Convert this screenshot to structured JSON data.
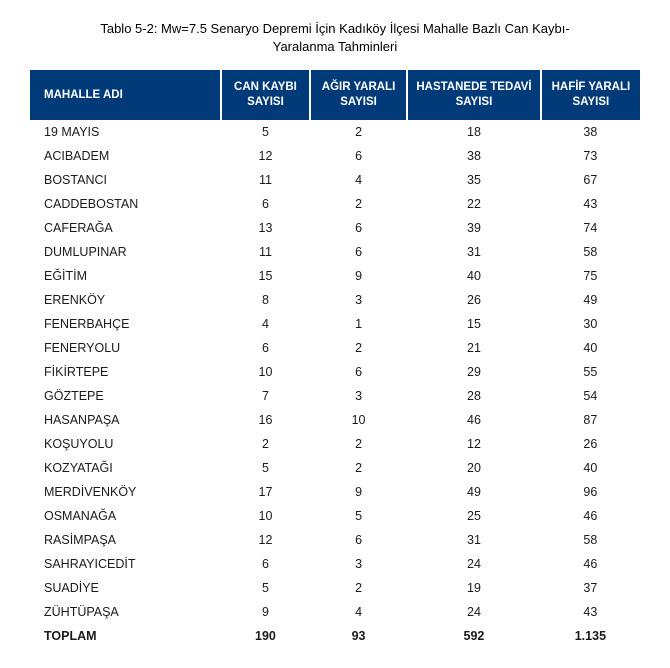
{
  "title": "Tablo 5-2: Mw=7.5 Senaryo Depremi İçin Kadıköy İlçesi Mahalle Bazlı Can Kaybı-Yaralanma Tahminleri",
  "table": {
    "columns": [
      "MAHALLE ADI",
      "CAN KAYBI SAYISI",
      "AĞIR YARALI SAYISI",
      "HASTANEDE TEDAVİ SAYISI",
      "HAFİF YARALI SAYISI"
    ],
    "rows": [
      [
        "19 MAYIS",
        "5",
        "2",
        "18",
        "38"
      ],
      [
        "ACIBADEM",
        "12",
        "6",
        "38",
        "73"
      ],
      [
        "BOSTANCI",
        "11",
        "4",
        "35",
        "67"
      ],
      [
        "CADDEBOSTAN",
        "6",
        "2",
        "22",
        "43"
      ],
      [
        "CAFERAĞA",
        "13",
        "6",
        "39",
        "74"
      ],
      [
        "DUMLUPINAR",
        "11",
        "6",
        "31",
        "58"
      ],
      [
        "EĞİTİM",
        "15",
        "9",
        "40",
        "75"
      ],
      [
        "ERENKÖY",
        "8",
        "3",
        "26",
        "49"
      ],
      [
        "FENERBAHÇE",
        "4",
        "1",
        "15",
        "30"
      ],
      [
        "FENERYOLU",
        "6",
        "2",
        "21",
        "40"
      ],
      [
        "FİKİRTEPE",
        "10",
        "6",
        "29",
        "55"
      ],
      [
        "GÖZTEPE",
        "7",
        "3",
        "28",
        "54"
      ],
      [
        "HASANPAŞA",
        "16",
        "10",
        "46",
        "87"
      ],
      [
        "KOŞUYOLU",
        "2",
        "2",
        "12",
        "26"
      ],
      [
        "KOZYATAĞI",
        "5",
        "2",
        "20",
        "40"
      ],
      [
        "MERDİVENKÖY",
        "17",
        "9",
        "49",
        "96"
      ],
      [
        "OSMANAĞA",
        "10",
        "5",
        "25",
        "46"
      ],
      [
        "RASİMPAŞA",
        "12",
        "6",
        "31",
        "58"
      ],
      [
        "SAHRAYICEDİT",
        "6",
        "3",
        "24",
        "46"
      ],
      [
        "SUADİYE",
        "5",
        "2",
        "19",
        "37"
      ],
      [
        "ZÜHTÜPAŞA",
        "9",
        "4",
        "24",
        "43"
      ]
    ],
    "total": [
      "TOPLAM",
      "190",
      "93",
      "592",
      "1.135"
    ],
    "header_bg": "#003a78",
    "header_fg": "#ffffff",
    "body_fg": "#1a1a1a",
    "title_fontsize": 13,
    "body_fontsize": 12.5,
    "header_fontsize": 11.5
  }
}
